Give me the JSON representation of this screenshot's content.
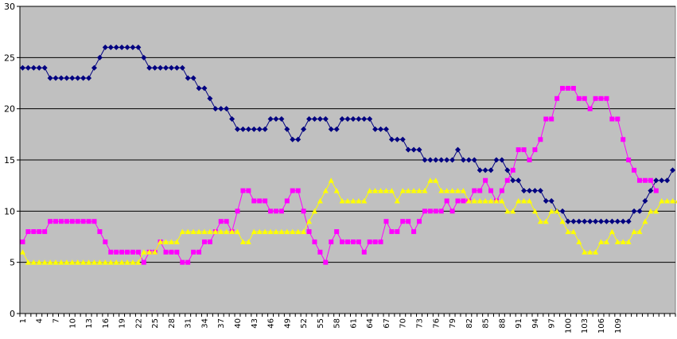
{
  "chart_data": {
    "type": "line",
    "xlabel": "",
    "ylabel": "",
    "ylim": [
      0,
      30
    ],
    "y_ticks": [
      0,
      5,
      10,
      15,
      20,
      25,
      30
    ],
    "x_tick_labels": [
      1,
      4,
      7,
      10,
      13,
      16,
      19,
      22,
      25,
      28,
      31,
      34,
      37,
      40,
      43,
      46,
      49,
      52,
      55,
      58,
      61,
      64,
      67,
      70,
      73,
      76,
      79,
      82,
      85,
      88,
      91,
      94,
      97,
      100,
      103,
      106,
      109
    ],
    "grid": true,
    "plot_background": "#c0c0c0",
    "series": [
      {
        "color": "#000080",
        "marker": "diamond",
        "values": [
          24,
          24,
          24,
          24,
          24,
          23,
          23,
          23,
          23,
          23,
          23,
          23,
          23,
          24,
          25,
          26,
          26,
          26,
          26,
          26,
          26,
          26,
          25,
          24,
          24,
          24,
          24,
          24,
          24,
          24,
          23,
          23,
          22,
          22,
          21,
          20,
          20,
          20,
          19,
          18,
          18,
          18,
          18,
          18,
          18,
          19,
          19,
          19,
          18,
          17,
          17,
          18,
          19,
          19,
          19,
          19,
          18,
          18,
          19,
          19,
          19,
          19,
          19,
          19,
          18,
          18,
          18,
          17,
          17,
          17,
          16,
          16,
          16,
          15,
          15,
          15,
          15,
          15,
          15,
          16,
          15,
          15,
          15,
          14,
          14,
          14,
          15,
          15,
          14,
          13,
          13,
          12,
          12,
          12,
          12,
          11,
          11,
          10,
          10,
          9,
          9,
          9,
          9,
          9,
          9,
          9,
          9,
          9,
          9,
          9,
          9,
          10,
          10,
          11,
          12,
          13,
          13,
          13,
          14
        ]
      },
      {
        "color": "#ff00ff",
        "marker": "square",
        "values": [
          7,
          8,
          8,
          8,
          8,
          9,
          9,
          9,
          9,
          9,
          9,
          9,
          9,
          9,
          8,
          7,
          6,
          6,
          6,
          6,
          6,
          6,
          5,
          6,
          6,
          7,
          6,
          6,
          6,
          5,
          5,
          6,
          6,
          7,
          7,
          8,
          9,
          9,
          8,
          10,
          12,
          12,
          11,
          11,
          11,
          10,
          10,
          10,
          11,
          12,
          12,
          10,
          8,
          7,
          6,
          5,
          7,
          8,
          7,
          7,
          7,
          7,
          6,
          7,
          7,
          7,
          9,
          8,
          8,
          9,
          9,
          8,
          9,
          10,
          10,
          10,
          10,
          11,
          10,
          11,
          11,
          11,
          12,
          12,
          13,
          12,
          11,
          12,
          13,
          14,
          16,
          16,
          15,
          16,
          17,
          19,
          19,
          21,
          22,
          22,
          22,
          21,
          21,
          20,
          21,
          21,
          21,
          19,
          19,
          17,
          15,
          14,
          13,
          13,
          13,
          12
        ]
      },
      {
        "color": "#ffff00",
        "marker": "triangle",
        "values": [
          6,
          5,
          5,
          5,
          5,
          5,
          5,
          5,
          5,
          5,
          5,
          5,
          5,
          5,
          5,
          5,
          5,
          5,
          5,
          5,
          5,
          5,
          6,
          6,
          6,
          7,
          7,
          7,
          7,
          8,
          8,
          8,
          8,
          8,
          8,
          8,
          8,
          8,
          8,
          8,
          7,
          7,
          8,
          8,
          8,
          8,
          8,
          8,
          8,
          8,
          8,
          8,
          9,
          10,
          11,
          12,
          13,
          12,
          11,
          11,
          11,
          11,
          11,
          12,
          12,
          12,
          12,
          12,
          11,
          12,
          12,
          12,
          12,
          12,
          13,
          13,
          12,
          12,
          12,
          12,
          12,
          11,
          11,
          11,
          11,
          11,
          11,
          11,
          10,
          10,
          11,
          11,
          11,
          10,
          9,
          9,
          10,
          10,
          9,
          8,
          8,
          7,
          6,
          6,
          6,
          7,
          7,
          8,
          7,
          7,
          7,
          8,
          8,
          9,
          10,
          10,
          11,
          11,
          11,
          11
        ]
      }
    ]
  }
}
